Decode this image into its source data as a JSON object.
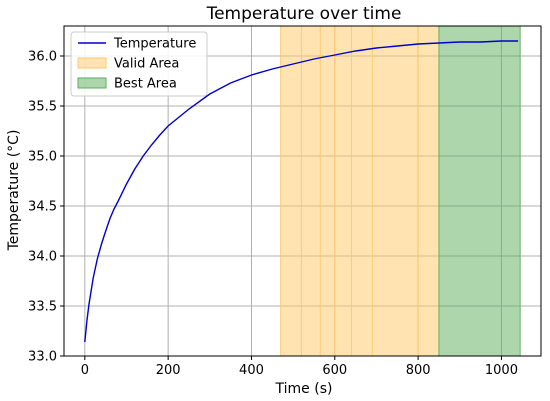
{
  "chart_data": {
    "type": "line",
    "title": "Temperature over time",
    "xlabel": "Time (s)",
    "ylabel": "Temperature (°C)",
    "xlim": [
      -50,
      1095
    ],
    "ylim": [
      33.0,
      36.3
    ],
    "xticks": [
      0,
      200,
      400,
      600,
      800,
      1000
    ],
    "yticks": [
      33.0,
      33.5,
      34.0,
      34.5,
      35.0,
      35.5,
      36.0
    ],
    "xtick_labels": [
      "0",
      "200",
      "400",
      "600",
      "800",
      "1000"
    ],
    "ytick_labels": [
      "33.0",
      "33.5",
      "34.0",
      "34.5",
      "35.0",
      "35.5",
      "36.0"
    ],
    "grid": true,
    "legend_position": "top-left",
    "series": [
      {
        "name": "Temperature",
        "color": "#0000cc",
        "x": [
          0,
          5,
          10,
          20,
          30,
          40,
          50,
          60,
          70,
          80,
          100,
          120,
          140,
          160,
          180,
          200,
          250,
          300,
          350,
          400,
          450,
          500,
          550,
          600,
          650,
          700,
          750,
          800,
          850,
          900,
          950,
          1000,
          1040
        ],
        "y": [
          33.14,
          33.35,
          33.52,
          33.78,
          33.97,
          34.12,
          34.25,
          34.37,
          34.47,
          34.55,
          34.72,
          34.87,
          35.0,
          35.11,
          35.21,
          35.3,
          35.47,
          35.62,
          35.73,
          35.81,
          35.87,
          35.92,
          35.97,
          36.01,
          36.05,
          36.08,
          36.1,
          36.12,
          36.13,
          36.14,
          36.14,
          36.15,
          36.15
        ]
      }
    ],
    "regions": [
      {
        "name": "Valid Area",
        "x_start": 470,
        "x_end": 850,
        "color": "#ffc966",
        "opacity": 0.5,
        "vlines": [
          520,
          565,
          600,
          640,
          690,
          800
        ]
      },
      {
        "name": "Best Area",
        "x_start": 850,
        "x_end": 1045,
        "color": "#5cae5c",
        "opacity": 0.5,
        "vlines": []
      }
    ],
    "legend": [
      "Temperature",
      "Valid Area",
      "Best Area"
    ]
  }
}
